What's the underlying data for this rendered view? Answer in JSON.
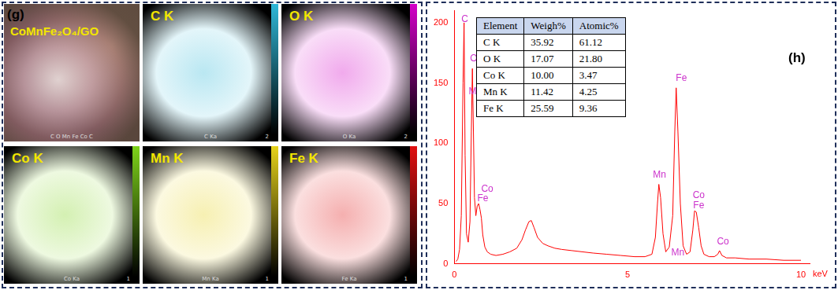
{
  "panel_g": {
    "label": "(g)",
    "sample": "CoMnFe₂O₄/GO",
    "composite_caption": "C O Mn Fe Co C",
    "maps": [
      {
        "title": "C K",
        "caption": "C Ka",
        "scale": "2",
        "color": "#2fb8d8"
      },
      {
        "title": "O K",
        "caption": "O Ka",
        "scale": "2",
        "color": "#d400c8"
      },
      {
        "title": "Co K",
        "caption": "Co Ka",
        "scale": "1",
        "color": "#7ed31a"
      },
      {
        "title": "Mn K",
        "caption": "Mn Ka",
        "scale": "1",
        "color": "#e6d21a"
      },
      {
        "title": "Fe K",
        "caption": "Fe Ka",
        "scale": "1",
        "color": "#e01010"
      }
    ]
  },
  "panel_h": {
    "label": "(h)",
    "table": {
      "header": [
        "Element",
        "Weigh%",
        "Atomic%"
      ],
      "rows": [
        [
          "C K",
          "35.92",
          "61.12"
        ],
        [
          "O K",
          "17.07",
          "21.80"
        ],
        [
          "Co K",
          "10.00",
          "3.47"
        ],
        [
          "Mn K",
          "11.42",
          "4.25"
        ],
        [
          "Fe K",
          "25.59",
          "9.36"
        ]
      ]
    }
  },
  "chart_data": {
    "type": "line",
    "x_label": "keV",
    "color": "#ff0000",
    "grid": false,
    "x": [
      0.05,
      0.1,
      0.15,
      0.2,
      0.25,
      0.28,
      0.31,
      0.35,
      0.4,
      0.45,
      0.49,
      0.52,
      0.55,
      0.58,
      0.62,
      0.66,
      0.7,
      0.74,
      0.78,
      0.82,
      0.88,
      0.95,
      1.05,
      1.2,
      1.4,
      1.6,
      1.8,
      1.95,
      2.05,
      2.15,
      2.22,
      2.3,
      2.4,
      2.55,
      2.7,
      2.9,
      3.1,
      3.4,
      3.7,
      4.0,
      4.4,
      4.8,
      5.2,
      5.5,
      5.7,
      5.8,
      5.86,
      5.9,
      5.95,
      6.02,
      6.1,
      6.2,
      6.3,
      6.36,
      6.4,
      6.45,
      6.52,
      6.6,
      6.7,
      6.8,
      6.88,
      6.93,
      6.98,
      7.05,
      7.12,
      7.2,
      7.35,
      7.5,
      7.6,
      7.65,
      7.72,
      7.85,
      8.1,
      8.5,
      9.0,
      9.5,
      10.0
    ],
    "values": [
      2,
      4,
      12,
      40,
      150,
      200,
      90,
      25,
      18,
      35,
      110,
      162,
      110,
      55,
      40,
      48,
      50,
      45,
      38,
      24,
      14,
      10,
      8,
      7,
      8,
      10,
      13,
      20,
      28,
      35,
      36,
      30,
      22,
      17,
      15,
      13,
      12,
      11,
      10,
      9,
      8,
      7,
      6,
      6,
      8,
      22,
      50,
      66,
      55,
      25,
      10,
      14,
      40,
      110,
      146,
      110,
      50,
      15,
      8,
      10,
      28,
      44,
      43,
      30,
      15,
      8,
      6,
      6,
      8,
      11,
      7,
      5,
      5,
      4,
      4,
      3,
      3
    ],
    "xlim": [
      0,
      10.25
    ],
    "ylim": [
      0,
      210
    ],
    "xticks": [
      0,
      5,
      10
    ],
    "yticks": [
      0,
      50,
      100,
      150,
      200
    ],
    "annotations": [
      {
        "text": "C",
        "x": 0.3,
        "y": 203,
        "color": "#cc33cc"
      },
      {
        "text": "O",
        "x": 0.56,
        "y": 170,
        "color": "#cc33cc"
      },
      {
        "text": "Mn",
        "x": 0.6,
        "y": 143,
        "color": "#cc33cc"
      },
      {
        "text": "Co",
        "x": 0.95,
        "y": 62,
        "color": "#cc33cc"
      },
      {
        "text": "Fe",
        "x": 0.82,
        "y": 54,
        "color": "#cc33cc"
      },
      {
        "text": "Mn",
        "x": 5.92,
        "y": 74,
        "color": "#cc33cc"
      },
      {
        "text": "Fe",
        "x": 6.55,
        "y": 154,
        "color": "#cc33cc"
      },
      {
        "text": "Mn",
        "x": 6.45,
        "y": 9,
        "color": "#cc33cc"
      },
      {
        "text": "Co",
        "x": 7.05,
        "y": 57,
        "color": "#cc33cc"
      },
      {
        "text": "Fe",
        "x": 7.05,
        "y": 48,
        "color": "#cc33cc"
      },
      {
        "text": "Co",
        "x": 7.75,
        "y": 18,
        "color": "#cc33cc"
      }
    ]
  }
}
